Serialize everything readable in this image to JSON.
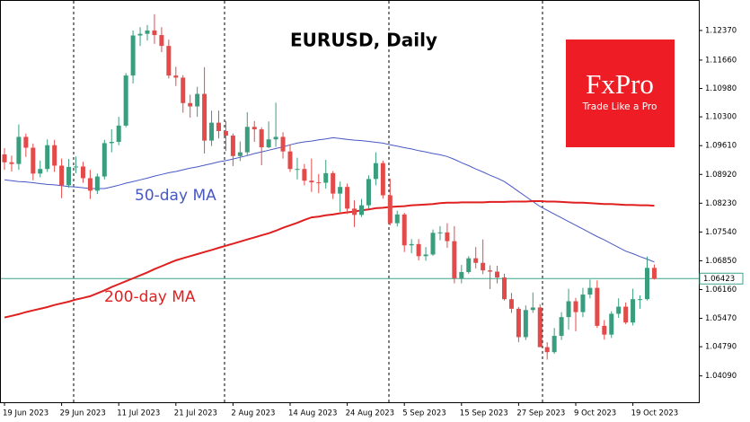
{
  "chart_data": {
    "type": "candlestick",
    "title": "EURUSD, Daily",
    "x": [
      "2023-06-19",
      "2023-06-20",
      "2023-06-21",
      "2023-06-22",
      "2023-06-23",
      "2023-06-26",
      "2023-06-27",
      "2023-06-28",
      "2023-06-29",
      "2023-06-30",
      "2023-07-03",
      "2023-07-04",
      "2023-07-05",
      "2023-07-06",
      "2023-07-07",
      "2023-07-10",
      "2023-07-11",
      "2023-07-12",
      "2023-07-13",
      "2023-07-14",
      "2023-07-17",
      "2023-07-18",
      "2023-07-19",
      "2023-07-20",
      "2023-07-21",
      "2023-07-24",
      "2023-07-25",
      "2023-07-26",
      "2023-07-27",
      "2023-07-28",
      "2023-07-31",
      "2023-08-01",
      "2023-08-02",
      "2023-08-03",
      "2023-08-04",
      "2023-08-07",
      "2023-08-08",
      "2023-08-09",
      "2023-08-10",
      "2023-08-11",
      "2023-08-14",
      "2023-08-15",
      "2023-08-16",
      "2023-08-17",
      "2023-08-18",
      "2023-08-21",
      "2023-08-22",
      "2023-08-23",
      "2023-08-24",
      "2023-08-25",
      "2023-08-28",
      "2023-08-29",
      "2023-08-30",
      "2023-08-31",
      "2023-09-01",
      "2023-09-04",
      "2023-09-05",
      "2023-09-06",
      "2023-09-07",
      "2023-09-08",
      "2023-09-11",
      "2023-09-12",
      "2023-09-13",
      "2023-09-14",
      "2023-09-15",
      "2023-09-18",
      "2023-09-19",
      "2023-09-20",
      "2023-09-21",
      "2023-09-22",
      "2023-09-25",
      "2023-09-26",
      "2023-09-27",
      "2023-09-28",
      "2023-09-29",
      "2023-10-02",
      "2023-10-03",
      "2023-10-04",
      "2023-10-05",
      "2023-10-06",
      "2023-10-09",
      "2023-10-10",
      "2023-10-11",
      "2023-10-12",
      "2023-10-13",
      "2023-10-16",
      "2023-10-17",
      "2023-10-18",
      "2023-10-19",
      "2023-10-20",
      "2023-10-23",
      "2023-10-24"
    ],
    "open": [
      1.094,
      1.0921,
      1.0917,
      1.0982,
      1.0956,
      1.0894,
      1.0905,
      1.0962,
      1.0913,
      1.0866,
      1.091,
      1.0911,
      1.0883,
      1.0853,
      1.0887,
      1.0967,
      1.097,
      1.1009,
      1.1129,
      1.1225,
      1.1229,
      1.1237,
      1.1226,
      1.12,
      1.1129,
      1.1124,
      1.1063,
      1.1055,
      1.1085,
      1.0973,
      1.1016,
      1.0996,
      1.0985,
      1.0936,
      1.0945,
      1.1006,
      1.1,
      1.0957,
      1.0976,
      1.0982,
      1.0947,
      1.0905,
      1.0905,
      1.0877,
      1.0873,
      1.0872,
      1.0895,
      1.0846,
      1.0862,
      1.081,
      1.0795,
      1.0818,
      1.0881,
      1.0919,
      1.0842,
      1.0775,
      1.0796,
      1.0722,
      1.0725,
      1.0696,
      1.07,
      1.0752,
      1.0753,
      1.0732,
      1.0643,
      1.0658,
      1.0691,
      1.068,
      1.0662,
      1.0659,
      1.0645,
      1.0593,
      1.057,
      1.0502,
      1.0567,
      1.0573,
      1.0478,
      1.0466,
      1.0505,
      1.055,
      1.0588,
      1.0562,
      1.0604,
      1.062,
      1.0529,
      1.0508,
      1.0558,
      1.0575,
      1.0537,
      1.0593,
      1.0593,
      1.0668
    ],
    "high": [
      1.0955,
      1.0937,
      1.1012,
      1.099,
      1.0966,
      1.0925,
      1.0976,
      1.0975,
      1.093,
      1.0929,
      1.0935,
      1.0922,
      1.0903,
      1.0894,
      1.0975,
      1.1,
      1.103,
      1.1135,
      1.1237,
      1.1245,
      1.125,
      1.1276,
      1.1245,
      1.1215,
      1.115,
      1.113,
      1.1083,
      1.1102,
      1.1149,
      1.1045,
      1.1045,
      1.102,
      1.099,
      1.0971,
      1.1041,
      1.102,
      1.1005,
      1.1019,
      1.1064,
      1.0993,
      1.0964,
      1.0932,
      1.0917,
      1.093,
      1.0893,
      1.0927,
      1.09,
      1.0875,
      1.087,
      1.083,
      1.0833,
      1.089,
      1.0945,
      1.0925,
      1.0882,
      1.0805,
      1.08,
      1.0737,
      1.0737,
      1.0718,
      1.076,
      1.0768,
      1.0775,
      1.0768,
      1.0675,
      1.0696,
      1.0718,
      1.0736,
      1.0674,
      1.0673,
      1.0654,
      1.0608,
      1.0574,
      1.0578,
      1.0609,
      1.0581,
      1.049,
      1.0524,
      1.0562,
      1.0618,
      1.0596,
      1.062,
      1.064,
      1.0638,
      1.0543,
      1.0564,
      1.0595,
      1.0585,
      1.0618,
      1.0602,
      1.0695,
      1.0676
    ],
    "low": [
      1.0903,
      1.0899,
      1.0903,
      1.0934,
      1.0878,
      1.0885,
      1.0898,
      1.0898,
      1.0835,
      1.086,
      1.0895,
      1.0872,
      1.0833,
      1.0845,
      1.088,
      1.0945,
      1.0962,
      1.1005,
      1.111,
      1.12,
      1.1213,
      1.1205,
      1.1185,
      1.1122,
      1.1104,
      1.104,
      1.1028,
      1.103,
      1.0942,
      1.096,
      1.0978,
      1.0948,
      1.0912,
      1.0924,
      1.0937,
      1.097,
      1.0914,
      1.0955,
      1.0958,
      1.093,
      1.0898,
      1.088,
      1.0866,
      1.085,
      1.0847,
      1.0858,
      1.0833,
      1.0802,
      1.0797,
      1.0766,
      1.079,
      1.081,
      1.0866,
      1.0834,
      1.077,
      1.0767,
      1.0706,
      1.0703,
      1.0686,
      1.0685,
      1.0697,
      1.0734,
      1.0716,
      1.0631,
      1.0631,
      1.0654,
      1.0667,
      1.0653,
      1.0617,
      1.0631,
      1.059,
      1.056,
      1.049,
      1.0495,
      1.056,
      1.0478,
      1.0448,
      1.0462,
      1.0495,
      1.052,
      1.0516,
      1.055,
      1.0595,
      1.0524,
      1.0496,
      1.05,
      1.0548,
      1.0533,
      1.053,
      1.057,
      1.059,
      1.064
    ],
    "close": [
      1.0921,
      1.0917,
      1.0982,
      1.0956,
      1.0894,
      1.0905,
      1.0962,
      1.0913,
      1.0866,
      1.091,
      1.0911,
      1.0883,
      1.0853,
      1.0887,
      1.0967,
      1.097,
      1.1009,
      1.1129,
      1.1225,
      1.1229,
      1.1237,
      1.1226,
      1.12,
      1.1129,
      1.1124,
      1.1063,
      1.1055,
      1.1085,
      1.0973,
      1.1016,
      1.0996,
      1.0985,
      1.0936,
      1.0945,
      1.1006,
      1.1,
      1.0957,
      1.0976,
      1.0982,
      1.0947,
      1.0905,
      1.0905,
      1.0877,
      1.0873,
      1.0872,
      1.0895,
      1.0846,
      1.0862,
      1.081,
      1.0795,
      1.0818,
      1.0881,
      1.0919,
      1.0842,
      1.0775,
      1.0796,
      1.0722,
      1.0725,
      1.0696,
      1.07,
      1.0752,
      1.0753,
      1.0732,
      1.0643,
      1.0658,
      1.0691,
      1.068,
      1.0662,
      1.0659,
      1.0645,
      1.0593,
      1.057,
      1.0502,
      1.0567,
      1.0573,
      1.0478,
      1.0466,
      1.0505,
      1.055,
      1.0588,
      1.0562,
      1.0604,
      1.062,
      1.0529,
      1.0508,
      1.0558,
      1.0575,
      1.0537,
      1.0593,
      1.0593,
      1.0668,
      1.0642
    ],
    "up_color": "#3a9e7e",
    "down_color": "#e34b4b",
    "series": [
      {
        "name": "50-day MA",
        "color": "#4758c4",
        "values": [
          1.0879,
          1.0877,
          1.0875,
          1.0874,
          1.0872,
          1.087,
          1.0868,
          1.0867,
          1.0865,
          1.0863,
          1.0862,
          1.086,
          1.0858,
          1.0858,
          1.0858,
          1.0862,
          1.0866,
          1.0871,
          1.0875,
          1.0879,
          1.0883,
          1.0888,
          1.0892,
          1.0896,
          1.0899,
          1.0903,
          1.0907,
          1.091,
          1.0914,
          1.0918,
          1.0922,
          1.0925,
          1.0929,
          1.0933,
          1.0937,
          1.0942,
          1.0946,
          1.095,
          1.0954,
          1.0958,
          1.0963,
          1.0967,
          1.097,
          1.0972,
          1.0975,
          1.0977,
          1.098,
          1.0978,
          1.0976,
          1.0974,
          1.0973,
          1.0971,
          1.0969,
          1.0967,
          1.0963,
          1.096,
          1.0956,
          1.0953,
          1.0949,
          1.0946,
          1.0942,
          1.0939,
          1.0935,
          1.0928,
          1.092,
          1.0913,
          1.0905,
          1.0898,
          1.089,
          1.0883,
          1.0875,
          1.0863,
          1.0851,
          1.0839,
          1.0827,
          1.0815,
          1.0806,
          1.0797,
          1.0788,
          1.0779,
          1.077,
          1.0761,
          1.0752,
          1.0743,
          1.0735,
          1.0726,
          1.0717,
          1.0708,
          1.0702,
          1.0695,
          1.0689,
          1.0682
        ]
      },
      {
        "name": "200-day MA",
        "color": "#e02020",
        "values": [
          1.0549,
          1.0553,
          1.0557,
          1.0562,
          1.0566,
          1.057,
          1.0574,
          1.0579,
          1.0583,
          1.0587,
          1.0592,
          1.0596,
          1.06,
          1.0607,
          1.0614,
          1.0622,
          1.0629,
          1.0636,
          1.0643,
          1.065,
          1.0657,
          1.0665,
          1.0672,
          1.0679,
          1.0686,
          1.0691,
          1.0696,
          1.0701,
          1.0706,
          1.0711,
          1.0716,
          1.0721,
          1.0726,
          1.0731,
          1.0736,
          1.0741,
          1.0746,
          1.0751,
          1.0757,
          1.0764,
          1.077,
          1.0776,
          1.0783,
          1.0789,
          1.0791,
          1.0794,
          1.0796,
          1.0799,
          1.0801,
          1.0803,
          1.0806,
          1.0808,
          1.0811,
          1.0812,
          1.0814,
          1.0815,
          1.0816,
          1.0818,
          1.0819,
          1.082,
          1.0821,
          1.0823,
          1.0824,
          1.0824,
          1.0825,
          1.0825,
          1.0825,
          1.0825,
          1.0826,
          1.0826,
          1.0826,
          1.0827,
          1.0827,
          1.0827,
          1.0828,
          1.0828,
          1.0827,
          1.0827,
          1.0826,
          1.0825,
          1.0824,
          1.0824,
          1.0823,
          1.0822,
          1.0821,
          1.0821,
          1.082,
          1.0819,
          1.0819,
          1.0818,
          1.0818,
          1.0817
        ]
      }
    ],
    "last_price": 1.06423,
    "last_price_color": "#3aa58a",
    "ylim": [
      1.03459,
      1.13079
    ],
    "yticks": [
      {
        "value": 1.1237,
        "label": "1.12370"
      },
      {
        "value": 1.1166,
        "label": "1.11660"
      },
      {
        "value": 1.1098,
        "label": "1.10980"
      },
      {
        "value": 1.103,
        "label": "1.10300"
      },
      {
        "value": 1.0961,
        "label": "1.09610"
      },
      {
        "value": 1.0892,
        "label": "1.08920"
      },
      {
        "value": 1.0823,
        "label": "1.08230"
      },
      {
        "value": 1.0754,
        "label": "1.07540"
      },
      {
        "value": 1.0685,
        "label": "1.06850"
      },
      {
        "value": 1.0616,
        "label": "1.06160"
      },
      {
        "value": 1.0547,
        "label": "1.05470"
      },
      {
        "value": 1.0479,
        "label": "1.04790"
      },
      {
        "value": 1.0409,
        "label": "1.04090"
      }
    ],
    "xticks": [
      {
        "value": "2023-06-19",
        "label": "19 Jun 2023"
      },
      {
        "value": "2023-06-29",
        "label": "29 Jun 2023"
      },
      {
        "value": "2023-07-11",
        "label": "11 Jul 2023"
      },
      {
        "value": "2023-07-21",
        "label": "21 Jul 2023"
      },
      {
        "value": "2023-08-02",
        "label": "2 Aug 2023"
      },
      {
        "value": "2023-08-14",
        "label": "14 Aug 2023"
      },
      {
        "value": "2023-08-24",
        "label": "24 Aug 2023"
      },
      {
        "value": "2023-09-05",
        "label": "5 Sep 2023"
      },
      {
        "value": "2023-09-15",
        "label": "15 Sep 2023"
      },
      {
        "value": "2023-09-27",
        "label": "27 Sep 2023"
      },
      {
        "value": "2023-10-09",
        "label": "9 Oct 2023"
      },
      {
        "value": "2023-10-19",
        "label": "19 Oct 2023"
      }
    ]
  },
  "logo": {
    "name": "FxPro",
    "tagline": "Trade Like a Pro"
  }
}
